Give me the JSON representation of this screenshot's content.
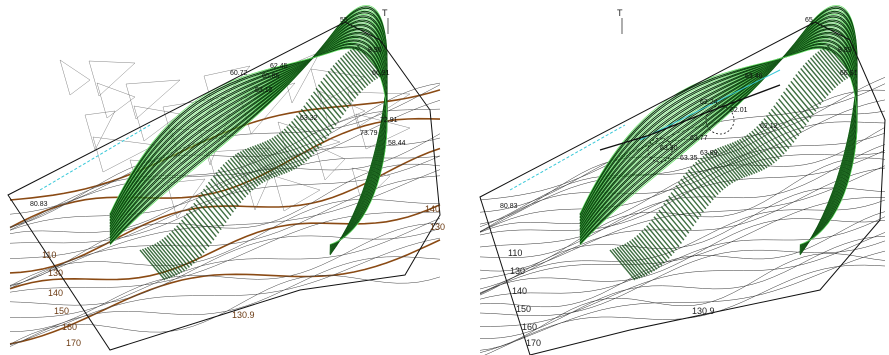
{
  "colors": {
    "background": "#ffffff",
    "boundary": "#111111",
    "contour_thin": "#222222",
    "contour_brown": "#8a4a14",
    "green_contour": "#1f8a1f",
    "dark_green": "#0f4a12",
    "light_green": "#5fe05f",
    "cyan_line": "#37c8d8",
    "tin_line": "#666666"
  },
  "panels": [
    {
      "id": "left",
      "description_icon": "terrain-tin-plan",
      "north_marker": "T",
      "labels_small": [
        "55",
        "8.96",
        "66.91",
        "63.12",
        "72.91",
        "58.44",
        "73.79",
        "63.32",
        "60.72",
        "65.85",
        "62.45"
      ],
      "labels_elev": [
        "110",
        "130",
        "140",
        "150",
        "160",
        "170",
        "130.9",
        "140",
        "130"
      ],
      "left_value": "80.83"
    },
    {
      "id": "right",
      "description_icon": "terrain-contour-plan",
      "north_marker": "T",
      "labels_small": [
        "65",
        "8.89",
        "66.91",
        "62.24",
        "62.01",
        "62.12",
        "63.35",
        "63.30",
        "63.77",
        "63.89",
        "63.46"
      ],
      "labels_elev": [
        "110",
        "130",
        "140",
        "150",
        "160",
        "170",
        "130.9"
      ],
      "left_value": "80.83"
    }
  ]
}
